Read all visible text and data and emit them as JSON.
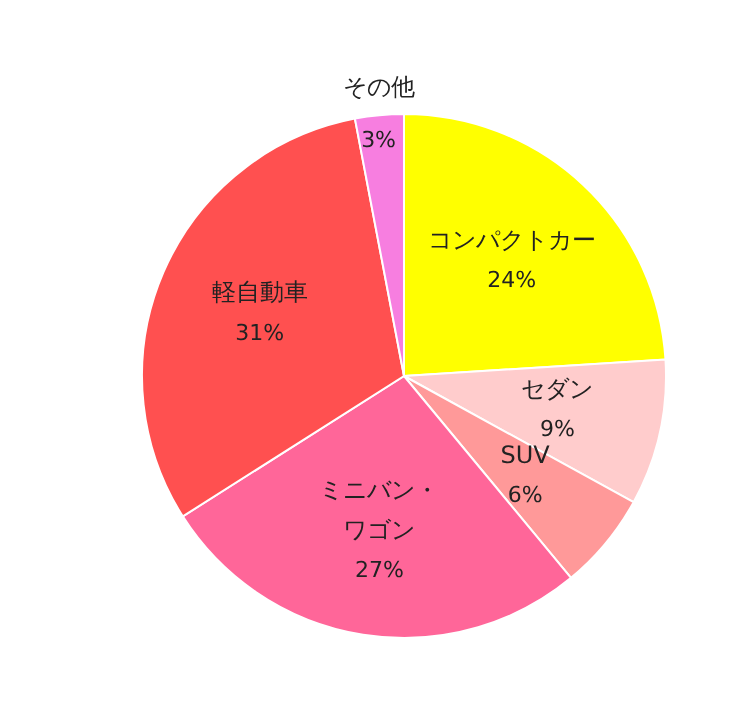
{
  "chart_data": {
    "type": "pie",
    "categories": [
      "コンパクトカー",
      "セダン",
      "SUV",
      "ミニバン・ワゴン",
      "軽自動車",
      "その他"
    ],
    "values": [
      24,
      9,
      6,
      27,
      31,
      3
    ],
    "value_labels": [
      "24%",
      "9%",
      "6%",
      "27%",
      "31%",
      "3%"
    ],
    "colors": [
      "#ffff00",
      "#ffcccc",
      "#ff9999",
      "#ff6699",
      "#ff5050",
      "#f77ee0"
    ],
    "legend": false
  }
}
